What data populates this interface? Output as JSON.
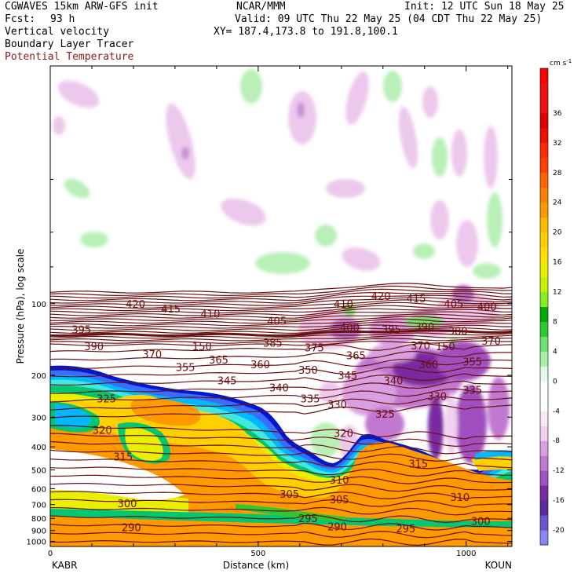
{
  "header": {
    "line1_left": "CGWAVES 15km ARW-GFS init",
    "line1_mid": "NCAR/MMM",
    "line1_right": "Init: 12 UTC Sun 18 May 25",
    "fcst_label": "Fcst:",
    "fcst_value": "93 h",
    "valid": "Valid: 09 UTC Thu 22 May 25 (04 CDT Thu 22 May 25)",
    "field1": "Vertical velocity",
    "xy": "XY= 187.4,173.8 to 191.8,100.1",
    "field2": "Boundary Layer Tracer",
    "field3": "Potential Temperature",
    "field3_color": "#8b1a1a"
  },
  "colors": {
    "theta_line": "#6b1010",
    "upward": [
      "#e8f8e8",
      "#a8f0a8",
      "#70e070",
      "#30c830",
      "#88ee22",
      "#e8f000",
      "#ffd000",
      "#ff9900",
      "#ff6600",
      "#ff2a00",
      "#dd0000"
    ],
    "downward": [
      "#f0d0f0",
      "#d8a0e0",
      "#c078d0",
      "#a050c0",
      "#7a2aa0",
      "#5a2a9a",
      "#6a55d0",
      "#8888f0"
    ],
    "tracer": [
      "#0018cc",
      "#3a6cff",
      "#00b8ff",
      "#40e8e0",
      "#00c870",
      "#e8f000",
      "#ffd000",
      "#ff9900"
    ]
  },
  "chart_data": {
    "type": "heatmap",
    "xlabel": "Distance (km)",
    "ylabel": "Pressure (hPa), log scale",
    "x_range": [
      0,
      1110
    ],
    "x_ticks": [
      "0",
      "500",
      "1000"
    ],
    "x_tick_values": [
      0,
      500,
      1000
    ],
    "endpoint_left": "KABR",
    "endpoint_right": "KOUN",
    "y_range_hPa": [
      1050,
      10
    ],
    "y_scale": "log",
    "y_ticks": [
      "100",
      "200",
      "300",
      "400",
      "500",
      "600",
      "700",
      "800",
      "900",
      "1000"
    ],
    "y_tick_values": [
      100,
      200,
      300,
      400,
      500,
      600,
      700,
      800,
      900,
      1000
    ],
    "colorbar": {
      "units_label": "cm s",
      "units_exp": "-1",
      "labels": [
        "36",
        "32",
        "28",
        "24",
        "20",
        "16",
        "12",
        "8",
        "4",
        "0",
        "-4",
        "-8",
        "-12",
        "-16",
        "-20"
      ],
      "min": -22,
      "max": 42,
      "step": 2
    },
    "theta_labels": [
      {
        "text": "420",
        "x": 205,
        "p": 100
      },
      {
        "text": "415",
        "x": 290,
        "p": 105
      },
      {
        "text": "410",
        "x": 385,
        "p": 110
      },
      {
        "text": "405",
        "x": 545,
        "p": 118
      },
      {
        "text": "410",
        "x": 705,
        "p": 100
      },
      {
        "text": "420",
        "x": 795,
        "p": 93
      },
      {
        "text": "415",
        "x": 880,
        "p": 95
      },
      {
        "text": "405",
        "x": 970,
        "p": 100
      },
      {
        "text": "400",
        "x": 1050,
        "p": 103
      },
      {
        "text": "395",
        "x": 75,
        "p": 128
      },
      {
        "text": "400",
        "x": 720,
        "p": 126
      },
      {
        "text": "395",
        "x": 820,
        "p": 128
      },
      {
        "text": "390",
        "x": 900,
        "p": 125
      },
      {
        "text": "380",
        "x": 980,
        "p": 130
      },
      {
        "text": "370",
        "x": 1060,
        "p": 143
      },
      {
        "text": "390",
        "x": 105,
        "p": 151
      },
      {
        "text": "150",
        "x": 365,
        "p": 151
      },
      {
        "text": "385",
        "x": 535,
        "p": 146
      },
      {
        "text": "375",
        "x": 635,
        "p": 153
      },
      {
        "text": "370",
        "x": 890,
        "p": 150
      },
      {
        "text": "150",
        "x": 950,
        "p": 151
      },
      {
        "text": "370",
        "x": 245,
        "p": 163
      },
      {
        "text": "365",
        "x": 405,
        "p": 172
      },
      {
        "text": "360",
        "x": 505,
        "p": 180
      },
      {
        "text": "365",
        "x": 735,
        "p": 165
      },
      {
        "text": "360",
        "x": 910,
        "p": 180
      },
      {
        "text": "355",
        "x": 1015,
        "p": 175
      },
      {
        "text": "355",
        "x": 325,
        "p": 185
      },
      {
        "text": "350",
        "x": 620,
        "p": 190
      },
      {
        "text": "345",
        "x": 425,
        "p": 210
      },
      {
        "text": "345",
        "x": 715,
        "p": 200
      },
      {
        "text": "340",
        "x": 550,
        "p": 225
      },
      {
        "text": "340",
        "x": 825,
        "p": 210
      },
      {
        "text": "335",
        "x": 625,
        "p": 250
      },
      {
        "text": "335",
        "x": 1015,
        "p": 230
      },
      {
        "text": "330",
        "x": 690,
        "p": 265
      },
      {
        "text": "330",
        "x": 930,
        "p": 245
      },
      {
        "text": "325",
        "x": 135,
        "p": 250
      },
      {
        "text": "325",
        "x": 805,
        "p": 290
      },
      {
        "text": "320",
        "x": 125,
        "p": 340
      },
      {
        "text": "320",
        "x": 705,
        "p": 350
      },
      {
        "text": "315",
        "x": 175,
        "p": 440
      },
      {
        "text": "315",
        "x": 885,
        "p": 470
      },
      {
        "text": "310",
        "x": 695,
        "p": 550
      },
      {
        "text": "310",
        "x": 985,
        "p": 650
      },
      {
        "text": "305",
        "x": 575,
        "p": 630
      },
      {
        "text": "305",
        "x": 695,
        "p": 665
      },
      {
        "text": "300",
        "x": 185,
        "p": 690
      },
      {
        "text": "300",
        "x": 1035,
        "p": 820
      },
      {
        "text": "295",
        "x": 620,
        "p": 800
      },
      {
        "text": "295",
        "x": 855,
        "p": 880
      },
      {
        "text": "290",
        "x": 195,
        "p": 870
      },
      {
        "text": "290",
        "x": 690,
        "p": 865
      }
    ]
  }
}
